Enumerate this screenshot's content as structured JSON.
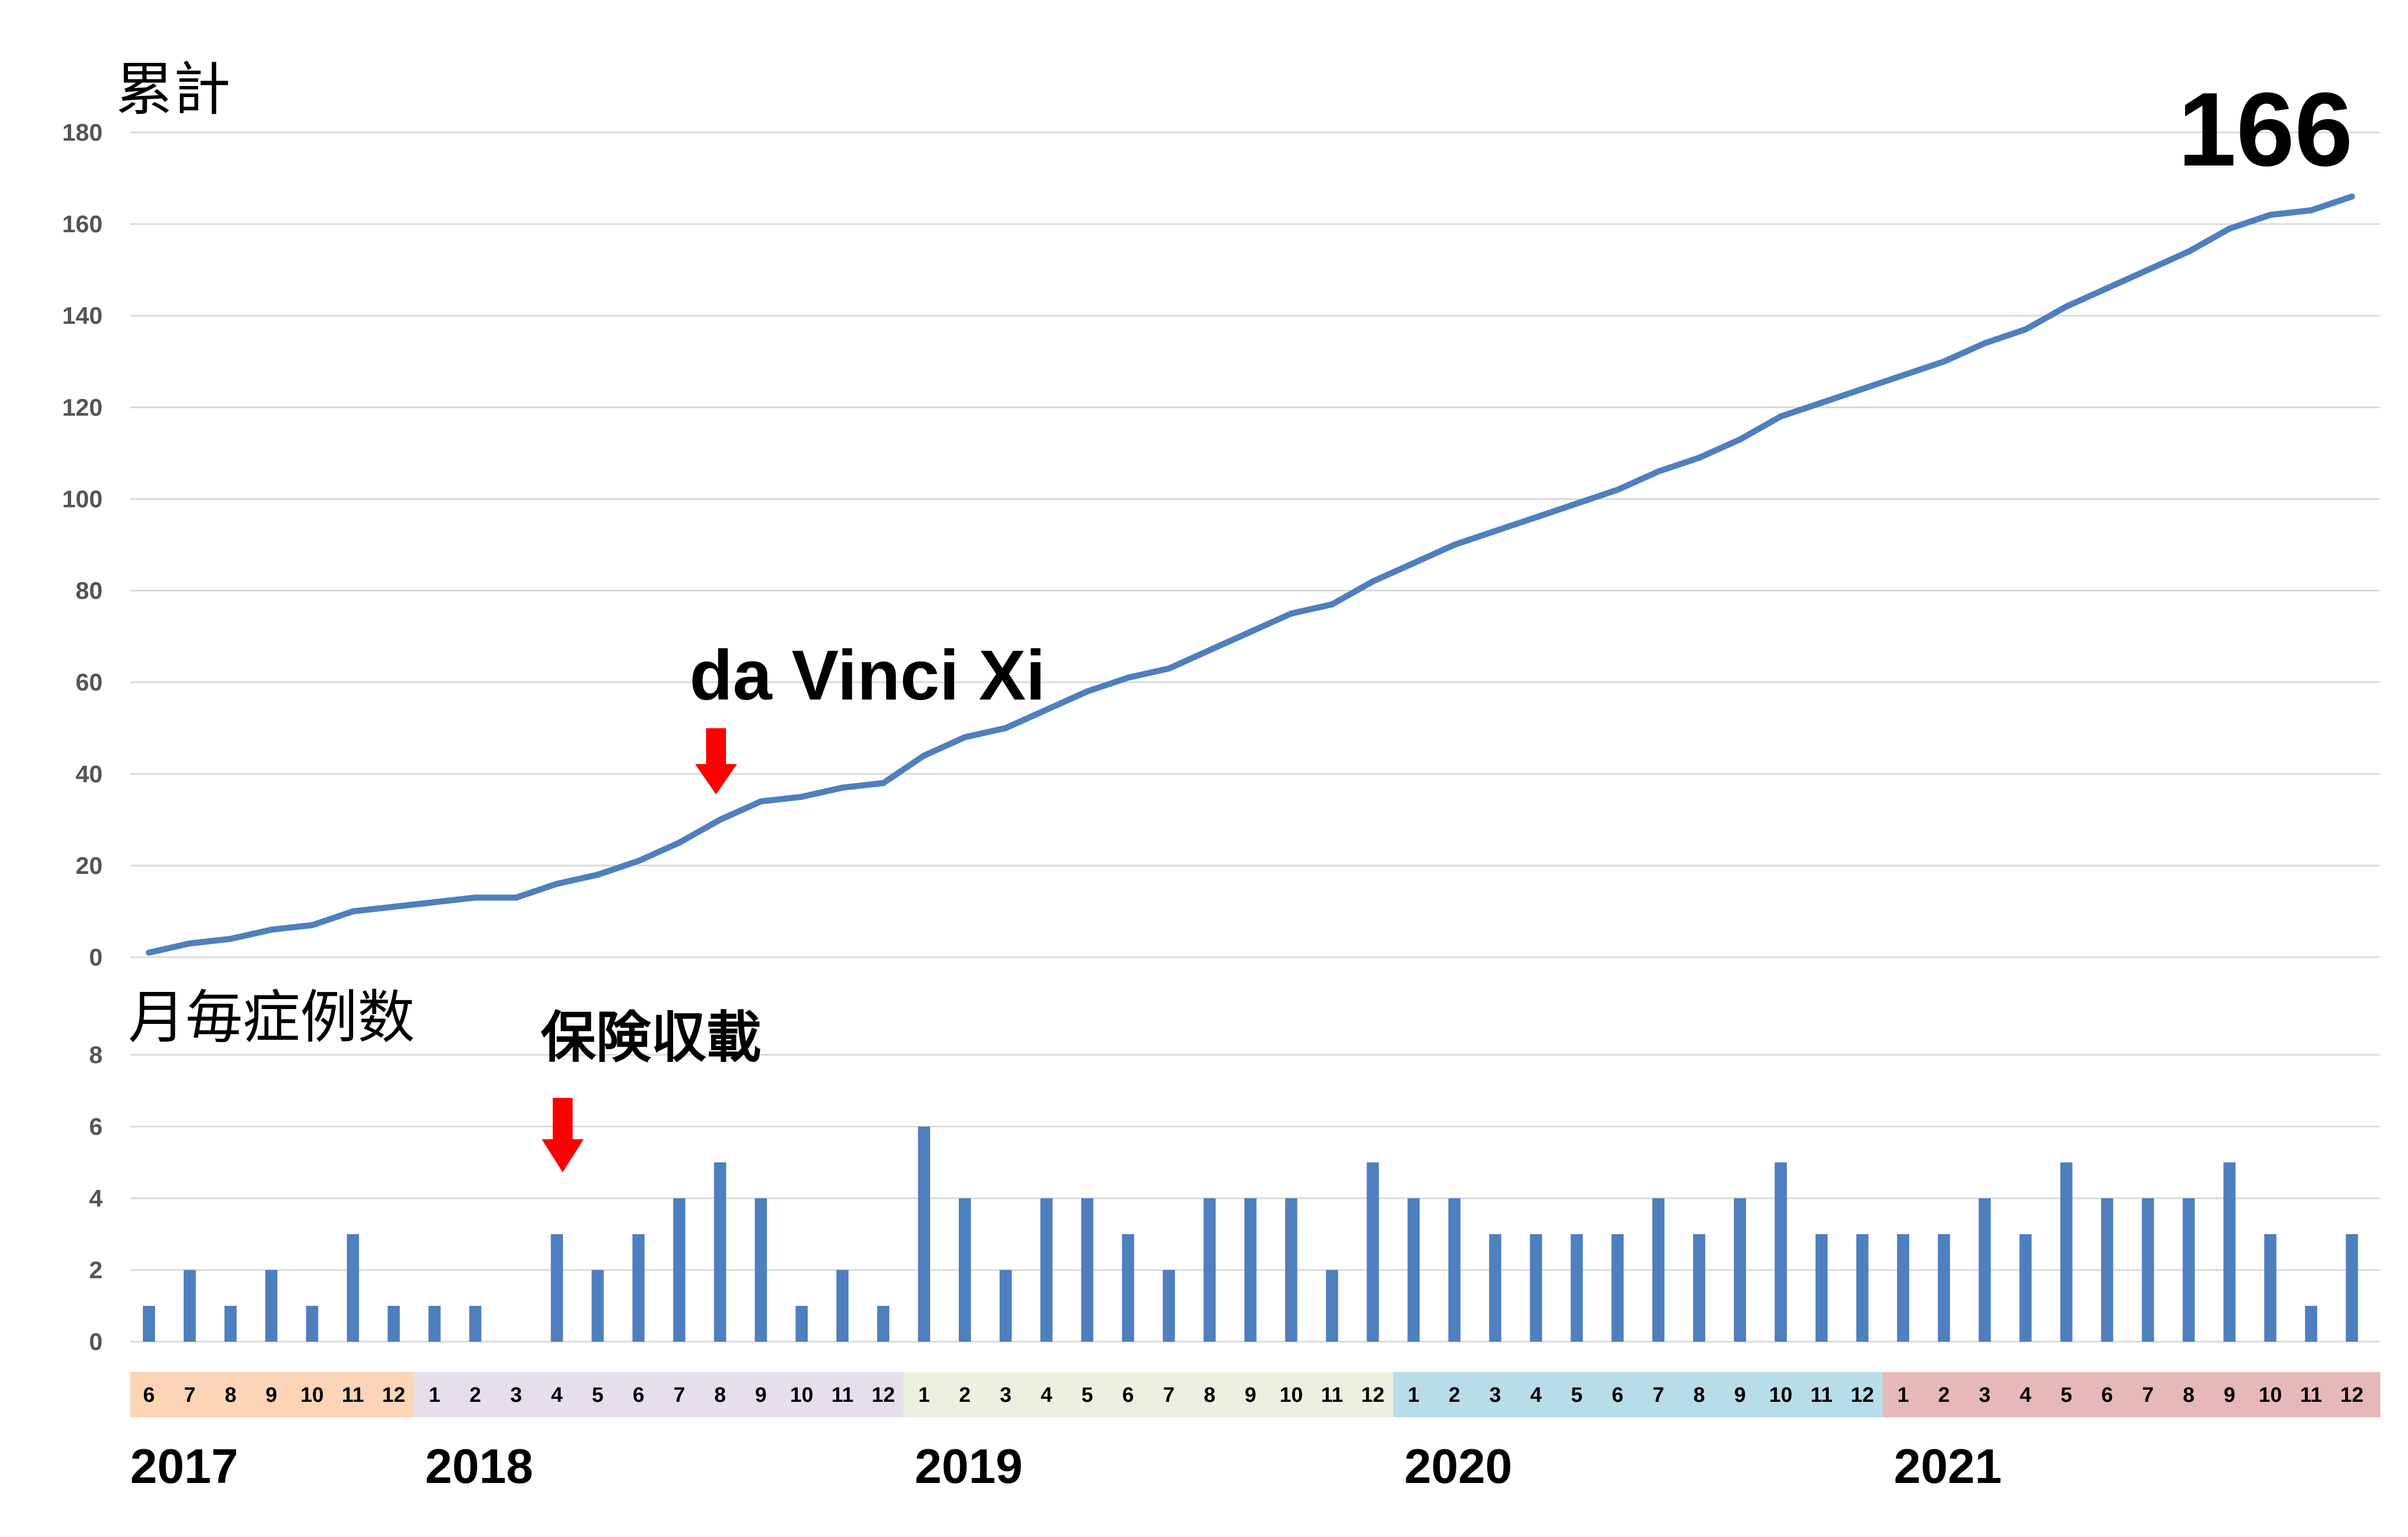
{
  "chart_data": [
    {
      "type": "line",
      "title": "",
      "ylabel": "累計",
      "ylim": [
        0,
        180
      ],
      "yticks": [
        0,
        20,
        40,
        60,
        80,
        100,
        120,
        140,
        160,
        180
      ],
      "grid": true,
      "x": [
        "2017-06",
        "2017-07",
        "2017-08",
        "2017-09",
        "2017-10",
        "2017-11",
        "2017-12",
        "2018-01",
        "2018-02",
        "2018-03",
        "2018-04",
        "2018-05",
        "2018-06",
        "2018-07",
        "2018-08",
        "2018-09",
        "2018-10",
        "2018-11",
        "2018-12",
        "2019-01",
        "2019-02",
        "2019-03",
        "2019-04",
        "2019-05",
        "2019-06",
        "2019-07",
        "2019-08",
        "2019-09",
        "2019-10",
        "2019-11",
        "2019-12",
        "2020-01",
        "2020-02",
        "2020-03",
        "2020-04",
        "2020-05",
        "2020-06",
        "2020-07",
        "2020-08",
        "2020-09",
        "2020-10",
        "2020-11",
        "2020-12",
        "2021-01",
        "2021-02",
        "2021-03",
        "2021-04",
        "2021-05",
        "2021-06",
        "2021-07",
        "2021-08",
        "2021-09",
        "2021-10",
        "2021-11",
        "2021-12"
      ],
      "series": [
        {
          "color": "#4f7fbf",
          "values": [
            1,
            3,
            4,
            6,
            7,
            10,
            11,
            12,
            13,
            13,
            16,
            18,
            21,
            25,
            30,
            34,
            35,
            37,
            38,
            44,
            48,
            50,
            54,
            58,
            61,
            63,
            67,
            71,
            75,
            77,
            82,
            86,
            90,
            93,
            96,
            99,
            102,
            106,
            109,
            113,
            118,
            121,
            124,
            127,
            130,
            134,
            137,
            142,
            146,
            150,
            154,
            159,
            162,
            163,
            166
          ]
        }
      ],
      "annotations": [
        {
          "text": "166"
        },
        {
          "text": "da Vinci Xi",
          "x": "2018-08",
          "marker": "red-down-arrow"
        }
      ]
    },
    {
      "type": "bar",
      "title": "",
      "ylabel": "月毎症例数",
      "ylim": [
        0,
        8
      ],
      "yticks": [
        0,
        2,
        4,
        6,
        8
      ],
      "grid": true,
      "categories": [
        "2017-06",
        "2017-07",
        "2017-08",
        "2017-09",
        "2017-10",
        "2017-11",
        "2017-12",
        "2018-01",
        "2018-02",
        "2018-03",
        "2018-04",
        "2018-05",
        "2018-06",
        "2018-07",
        "2018-08",
        "2018-09",
        "2018-10",
        "2018-11",
        "2018-12",
        "2019-01",
        "2019-02",
        "2019-03",
        "2019-04",
        "2019-05",
        "2019-06",
        "2019-07",
        "2019-08",
        "2019-09",
        "2019-10",
        "2019-11",
        "2019-12",
        "2020-01",
        "2020-02",
        "2020-03",
        "2020-04",
        "2020-05",
        "2020-06",
        "2020-07",
        "2020-08",
        "2020-09",
        "2020-10",
        "2020-11",
        "2020-12",
        "2021-01",
        "2021-02",
        "2021-03",
        "2021-04",
        "2021-05",
        "2021-06",
        "2021-07",
        "2021-08",
        "2021-09",
        "2021-10",
        "2021-11",
        "2021-12"
      ],
      "series": [
        {
          "color": "#4f7fbf",
          "values": [
            1,
            2,
            1,
            2,
            1,
            3,
            1,
            1,
            1,
            0,
            3,
            2,
            3,
            4,
            5,
            4,
            1,
            2,
            1,
            6,
            4,
            2,
            4,
            4,
            3,
            2,
            4,
            4,
            4,
            2,
            5,
            4,
            4,
            3,
            3,
            3,
            3,
            4,
            3,
            4,
            5,
            3,
            3,
            3,
            3,
            4,
            3,
            5,
            4,
            4,
            4,
            5,
            3,
            1,
            3
          ]
        }
      ],
      "annotations": [
        {
          "text": "保険収載",
          "x": "2018-04",
          "marker": "red-down-arrow"
        }
      ]
    }
  ],
  "timeline": {
    "years": [
      {
        "label": "2017",
        "color": "#fbd5b5",
        "months": [
          "6",
          "7",
          "8",
          "9",
          "10",
          "11",
          "12"
        ]
      },
      {
        "label": "2018",
        "color": "#e5dfec",
        "months": [
          "1",
          "2",
          "3",
          "4",
          "5",
          "6",
          "7",
          "8",
          "9",
          "10",
          "11",
          "12"
        ]
      },
      {
        "label": "2019",
        "color": "#ebf1de",
        "months": [
          "1",
          "2",
          "3",
          "4",
          "5",
          "6",
          "7",
          "8",
          "9",
          "10",
          "11",
          "12"
        ]
      },
      {
        "label": "2020",
        "color": "#b7dde8",
        "months": [
          "1",
          "2",
          "3",
          "4",
          "5",
          "6",
          "7",
          "8",
          "9",
          "10",
          "11",
          "12"
        ]
      },
      {
        "label": "2021",
        "color": "#e6b9b8",
        "months": [
          "1",
          "2",
          "3",
          "4",
          "5",
          "6",
          "7",
          "8",
          "9",
          "10",
          "11",
          "12"
        ]
      }
    ]
  },
  "colors": {
    "series": "#4f7fbf",
    "arrow": "#ff0000",
    "grid": "#d9d9d9"
  }
}
